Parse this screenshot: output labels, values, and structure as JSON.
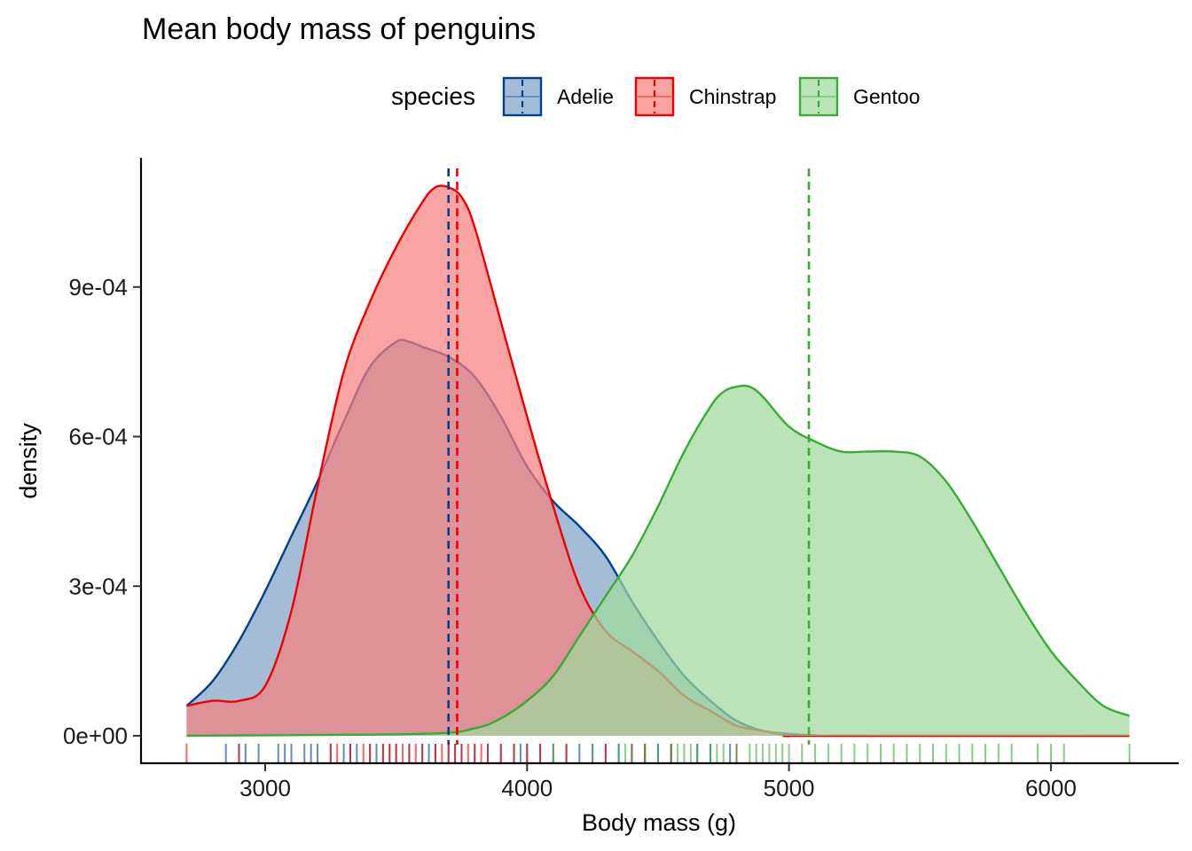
{
  "chart_data": {
    "type": "area",
    "title": "Mean body mass of penguins",
    "xlabel": "Body mass (g)",
    "ylabel": "density",
    "xlim": [
      2700,
      6300
    ],
    "ylim": [
      0,
      0.0011
    ],
    "x_ticks": [
      {
        "value": 3000,
        "label": "3000"
      },
      {
        "value": 4000,
        "label": "4000"
      },
      {
        "value": 5000,
        "label": "5000"
      },
      {
        "value": 6000,
        "label": "6000"
      }
    ],
    "y_ticks": [
      {
        "value": 0,
        "label": "0e+00"
      },
      {
        "value": 0.0003,
        "label": "3e-04"
      },
      {
        "value": 0.0006,
        "label": "6e-04"
      },
      {
        "value": 0.0009,
        "label": "9e-04"
      }
    ],
    "grid": false,
    "legend": {
      "title": "species",
      "placement": "top"
    },
    "series": [
      {
        "name": "Adelie",
        "color": "#003f8a",
        "fill": "#7fa3c8",
        "mean": 3700,
        "x": [
          2700,
          2800,
          2900,
          3000,
          3100,
          3200,
          3300,
          3400,
          3500,
          3550,
          3600,
          3700,
          3800,
          3900,
          4000,
          4100,
          4200,
          4300,
          4400,
          4500,
          4600,
          4700,
          4800,
          4900,
          5000,
          5100,
          5200,
          6300
        ],
        "density": [
          6e-05,
          0.00011,
          0.00019,
          0.00029,
          0.0004,
          0.00051,
          0.00063,
          0.00074,
          0.00079,
          0.00079,
          0.00078,
          0.00076,
          0.00072,
          0.00064,
          0.00054,
          0.00047,
          0.00042,
          0.00036,
          0.00027,
          0.00019,
          0.00012,
          7e-05,
          3e-05,
          1e-05,
          4e-06,
          1e-06,
          0.0,
          0.0
        ],
        "rug": [
          2850,
          2900,
          2925,
          2975,
          3050,
          3075,
          3100,
          3150,
          3175,
          3200,
          3250,
          3300,
          3325,
          3350,
          3400,
          3425,
          3450,
          3475,
          3500,
          3550,
          3600,
          3625,
          3650,
          3700,
          3725,
          3750,
          3800,
          3850,
          3900,
          3950,
          3975,
          4000,
          4050,
          4100,
          4150,
          4200,
          4250,
          4300,
          4350,
          4400,
          4450,
          4500,
          4550,
          4650,
          4700,
          4775
        ]
      },
      {
        "name": "Chinstrap",
        "color": "#ee0000",
        "fill": "#f67f7f",
        "mean": 3733,
        "x": [
          2700,
          2800,
          2900,
          3000,
          3100,
          3200,
          3300,
          3400,
          3500,
          3600,
          3650,
          3700,
          3750,
          3800,
          3900,
          4000,
          4100,
          4200,
          4300,
          4400,
          4500,
          4600,
          4700,
          4800,
          4900,
          5000,
          5100,
          6300
        ],
        "density": [
          6e-05,
          7e-05,
          7e-05,
          0.0001,
          0.00025,
          0.0005,
          0.00073,
          0.00087,
          0.00098,
          0.00107,
          0.0011,
          0.0011,
          0.00108,
          0.00102,
          0.00083,
          0.00064,
          0.00046,
          0.0003,
          0.00021,
          0.00017,
          0.00013,
          8e-05,
          5e-05,
          2e-05,
          1e-05,
          0.0,
          0.0,
          0.0
        ],
        "rug": [
          2700,
          2900,
          3250,
          3275,
          3325,
          3375,
          3400,
          3450,
          3475,
          3500,
          3525,
          3550,
          3575,
          3600,
          3650,
          3675,
          3700,
          3725,
          3750,
          3775,
          3800,
          3825,
          3850,
          3900,
          3950,
          4000,
          4050,
          4150,
          4300,
          4400,
          4450,
          4550,
          4800
        ]
      },
      {
        "name": "Gentoo",
        "color": "#3aaa35",
        "fill": "#a0da9d",
        "mean": 5076,
        "x": [
          2700,
          3600,
          3800,
          3900,
          4000,
          4100,
          4200,
          4300,
          4400,
          4500,
          4600,
          4700,
          4750,
          4800,
          4850,
          4900,
          5000,
          5100,
          5200,
          5300,
          5400,
          5500,
          5600,
          5700,
          5800,
          5900,
          6000,
          6100,
          6200,
          6300
        ],
        "density": [
          0.0,
          4e-06,
          1.5e-05,
          3.5e-05,
          7e-05,
          0.00012,
          0.0002,
          0.00028,
          0.00036,
          0.00046,
          0.00057,
          0.00066,
          0.00069,
          0.0007,
          0.0007,
          0.00068,
          0.00062,
          0.00059,
          0.00057,
          0.00057,
          0.00057,
          0.00056,
          0.00051,
          0.00043,
          0.00034,
          0.00025,
          0.00017,
          0.00011,
          6e-05,
          4e-05
        ],
        "rug": [
          4100,
          4250,
          4350,
          4375,
          4400,
          4450,
          4500,
          4550,
          4575,
          4600,
          4625,
          4650,
          4700,
          4725,
          4750,
          4800,
          4850,
          4875,
          4900,
          4925,
          4950,
          4975,
          5000,
          5050,
          5100,
          5150,
          5200,
          5250,
          5300,
          5350,
          5400,
          5450,
          5500,
          5550,
          5600,
          5650,
          5700,
          5750,
          5800,
          5850,
          5950,
          6000,
          6050,
          6300
        ]
      }
    ]
  }
}
